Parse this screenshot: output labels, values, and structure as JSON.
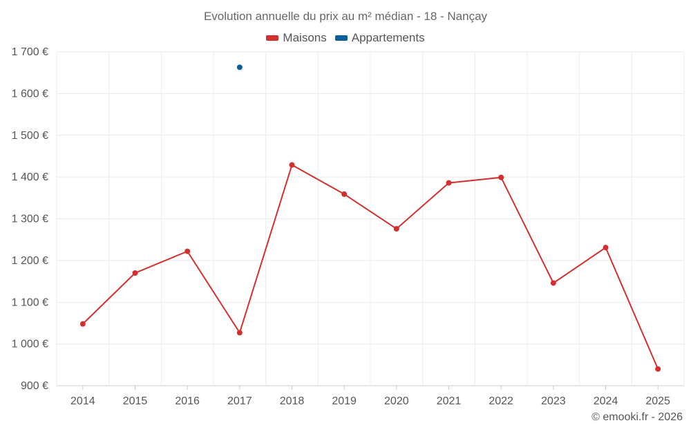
{
  "chart_data": {
    "type": "line",
    "title": "Evolution annuelle du prix au m² médian - 18 - Nançay",
    "categories": [
      "2014",
      "2015",
      "2016",
      "2017",
      "2018",
      "2019",
      "2020",
      "2021",
      "2022",
      "2023",
      "2024",
      "2025"
    ],
    "y_tick_labels": [
      "900 €",
      "1 000 €",
      "1 100 €",
      "1 200 €",
      "1 300 €",
      "1 400 €",
      "1 500 €",
      "1 600 €",
      "1 700 €"
    ],
    "y_ticks": [
      900,
      1000,
      1100,
      1200,
      1300,
      1400,
      1500,
      1600,
      1700
    ],
    "ylim": [
      900,
      1700
    ],
    "grid": true,
    "legend_position": "top-center",
    "series": [
      {
        "name": "Maisons",
        "color": "#d32f2f",
        "values": [
          1048,
          1170,
          1222,
          1027,
          1429,
          1359,
          1276,
          1386,
          1399,
          1146,
          1231,
          940
        ]
      },
      {
        "name": "Appartements",
        "color": "#0b5f99",
        "values": [
          null,
          null,
          null,
          1663,
          null,
          null,
          null,
          null,
          null,
          null,
          null,
          null
        ]
      }
    ]
  },
  "credit": "© emooki.fr - 2026"
}
